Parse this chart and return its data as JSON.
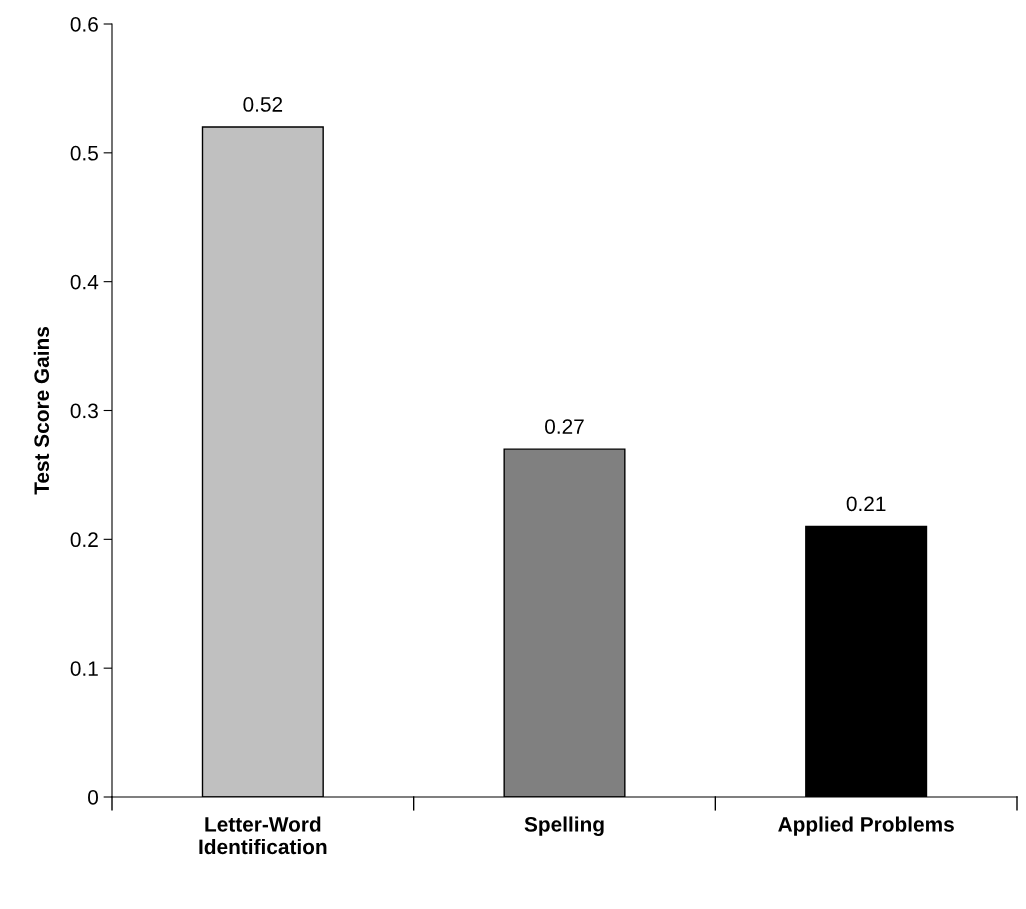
{
  "chart_data": {
    "type": "bar",
    "ylabel": "Test Score Gains",
    "categories": [
      "Letter-Word\nIdentification",
      "Spelling",
      "Applied Problems"
    ],
    "values": [
      0.52,
      0.27,
      0.21
    ],
    "colors": [
      "#c0c0c0",
      "#808080",
      "#000000"
    ],
    "ylim": [
      0,
      0.6
    ],
    "yticks": [
      0,
      0.1,
      0.2,
      0.3,
      0.4,
      0.5,
      0.6
    ],
    "data_labels": true,
    "grid": false,
    "legend": false
  }
}
